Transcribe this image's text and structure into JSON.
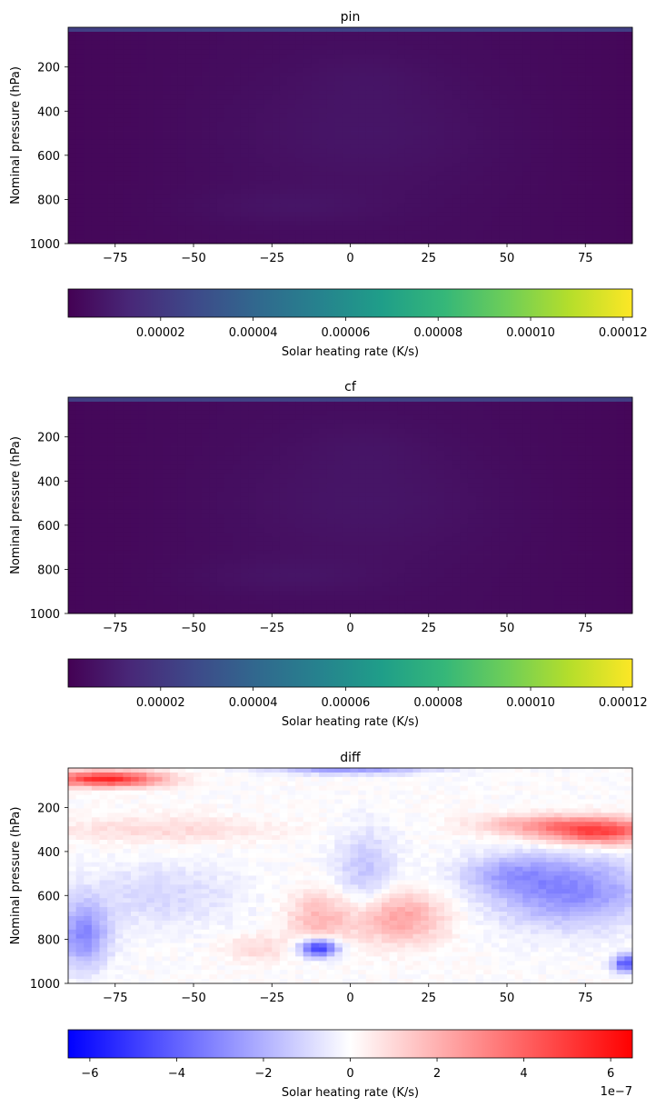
{
  "colormaps": {
    "viridis": [
      "#440154",
      "#482878",
      "#3e4989",
      "#31688e",
      "#26828e",
      "#1f9e89",
      "#35b779",
      "#6ece58",
      "#b5de2b",
      "#fde725"
    ],
    "bwr": [
      "#0000ff",
      "#ffffff",
      "#ff0000"
    ]
  },
  "chart_data": [
    {
      "type": "heatmap",
      "title": "pin",
      "ylabel": "Nominal pressure (hPa)",
      "xlim": [
        -90,
        90
      ],
      "ylim": [
        1000,
        20
      ],
      "xticks": [
        -75,
        -50,
        -25,
        0,
        25,
        50,
        75
      ],
      "yticks": [
        200,
        400,
        600,
        800,
        1000
      ],
      "colormap": "viridis",
      "colorbar": {
        "label": "Solar heating rate (K/s)",
        "range": [
          0,
          0.000122
        ],
        "ticks": [
          2e-05,
          4e-05,
          6e-05,
          8e-05,
          0.0001,
          0.00012
        ],
        "tick_labels": [
          "0.00002",
          "0.00004",
          "0.00006",
          "0.00008",
          "0.00010",
          "0.00012"
        ]
      },
      "field": {
        "description_values": "approximate heating rate (K/s)",
        "background": 4e-06,
        "top_band": [
          {
            "p_max": 35,
            "value": 2.5e-05
          },
          {
            "p_max": 50,
            "value": 8e-06
          }
        ],
        "blobs": [
          {
            "lat": 5,
            "p": 500,
            "lat_width": 40,
            "p_width": 250,
            "amp": 3e-06
          },
          {
            "lat": -20,
            "p": 830,
            "lat_width": 30,
            "p_width": 80,
            "amp": 2.5e-06
          },
          {
            "lat": 5,
            "p": 250,
            "lat_width": 20,
            "p_width": 120,
            "amp": 1.5e-06
          }
        ],
        "lat_falloff": 2e-06
      }
    },
    {
      "type": "heatmap",
      "title": "cf",
      "ylabel": "Nominal pressure (hPa)",
      "xlim": [
        -90,
        90
      ],
      "ylim": [
        1000,
        20
      ],
      "xticks": [
        -75,
        -50,
        -25,
        0,
        25,
        50,
        75
      ],
      "yticks": [
        200,
        400,
        600,
        800,
        1000
      ],
      "colormap": "viridis",
      "colorbar": {
        "label": "Solar heating rate (K/s)",
        "range": [
          0,
          0.000122
        ],
        "ticks": [
          2e-05,
          4e-05,
          6e-05,
          8e-05,
          0.0001,
          0.00012
        ],
        "tick_labels": [
          "0.00002",
          "0.00004",
          "0.00006",
          "0.00008",
          "0.00010",
          "0.00012"
        ]
      },
      "field": {
        "description_values": "approximate heating rate (K/s)",
        "background": 4e-06,
        "top_band": [
          {
            "p_max": 35,
            "value": 2.5e-05
          },
          {
            "p_max": 50,
            "value": 8e-06
          }
        ],
        "blobs": [
          {
            "lat": 5,
            "p": 500,
            "lat_width": 40,
            "p_width": 250,
            "amp": 3e-06
          },
          {
            "lat": -20,
            "p": 830,
            "lat_width": 30,
            "p_width": 80,
            "amp": 2.5e-06
          },
          {
            "lat": 5,
            "p": 250,
            "lat_width": 20,
            "p_width": 120,
            "amp": 1.5e-06
          }
        ],
        "lat_falloff": 2e-06
      }
    },
    {
      "type": "heatmap",
      "title": "diff",
      "ylabel": "Nominal pressure (hPa)",
      "xlim": [
        -90,
        90
      ],
      "ylim": [
        1000,
        20
      ],
      "xticks": [
        -75,
        -50,
        -25,
        0,
        25,
        50,
        75
      ],
      "yticks": [
        200,
        400,
        600,
        800,
        1000
      ],
      "colormap": "bwr",
      "colorbar": {
        "label": "Solar heating rate (K/s)",
        "range": [
          -6.5,
          6.5
        ],
        "ticks": [
          -6,
          -4,
          -2,
          0,
          2,
          4,
          6
        ],
        "tick_labels": [
          "−6",
          "−4",
          "−2",
          "0",
          "2",
          "4",
          "6"
        ],
        "offset_text": "1e−7"
      },
      "field": {
        "description_values": "approximate difference in units of 1e-7 K/s",
        "background": 0,
        "blobs": [
          {
            "lat": -78,
            "p": 70,
            "lat_width": 18,
            "p_width": 35,
            "amp": 5.5
          },
          {
            "lat": 0,
            "p": 30,
            "lat_width": 25,
            "p_width": 20,
            "amp": -2.5
          },
          {
            "lat": -60,
            "p": 300,
            "lat_width": 35,
            "p_width": 60,
            "amp": 1.0
          },
          {
            "lat": 80,
            "p": 310,
            "lat_width": 18,
            "p_width": 60,
            "amp": 4.5
          },
          {
            "lat": 60,
            "p": 280,
            "lat_width": 20,
            "p_width": 50,
            "amp": 2.0
          },
          {
            "lat": 70,
            "p": 580,
            "lat_width": 25,
            "p_width": 160,
            "amp": -3.0
          },
          {
            "lat": 50,
            "p": 500,
            "lat_width": 15,
            "p_width": 80,
            "amp": -1.5
          },
          {
            "lat": -85,
            "p": 780,
            "lat_width": 8,
            "p_width": 150,
            "amp": -3.0
          },
          {
            "lat": -60,
            "p": 600,
            "lat_width": 25,
            "p_width": 150,
            "amp": -1.0
          },
          {
            "lat": 5,
            "p": 500,
            "lat_width": 10,
            "p_width": 200,
            "amp": -1.5
          },
          {
            "lat": 15,
            "p": 700,
            "lat_width": 15,
            "p_width": 120,
            "amp": 2.5
          },
          {
            "lat": -10,
            "p": 700,
            "lat_width": 10,
            "p_width": 120,
            "amp": 1.8
          },
          {
            "lat": -10,
            "p": 840,
            "lat_width": 6,
            "p_width": 40,
            "amp": -5.5
          },
          {
            "lat": -30,
            "p": 840,
            "lat_width": 10,
            "p_width": 60,
            "amp": 1.0
          },
          {
            "lat": 88,
            "p": 910,
            "lat_width": 4,
            "p_width": 40,
            "amp": -4.5
          }
        ],
        "noise": 0.5
      }
    }
  ]
}
